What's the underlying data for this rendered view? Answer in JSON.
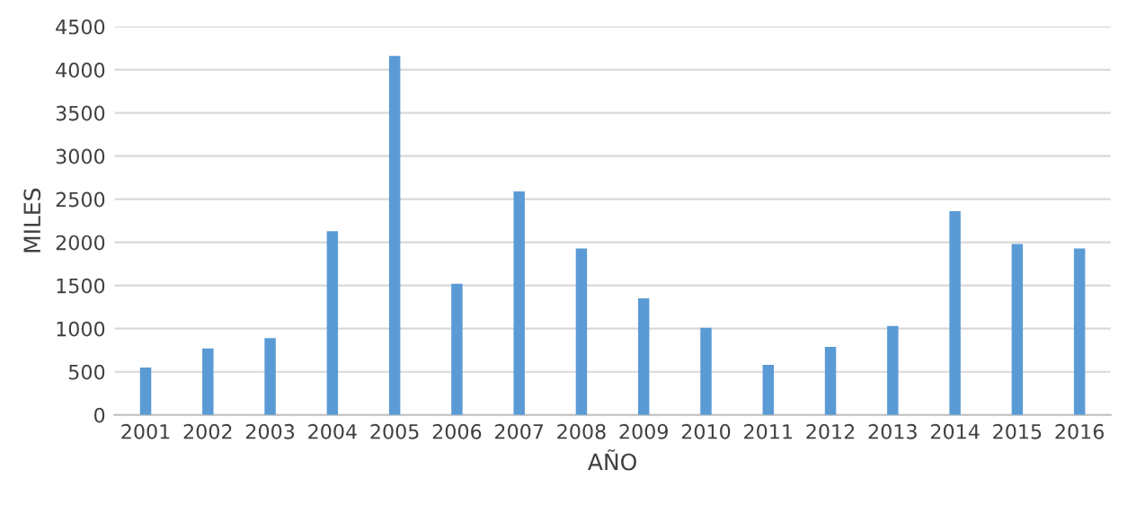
{
  "chart_data": {
    "type": "bar",
    "xlabel": "AÑO",
    "ylabel": "MILES",
    "categories": [
      "2001",
      "2002",
      "2003",
      "2004",
      "2005",
      "2006",
      "2007",
      "2008",
      "2009",
      "2010",
      "2011",
      "2012",
      "2013",
      "2014",
      "2015",
      "2016"
    ],
    "values": [
      550,
      770,
      890,
      2130,
      4160,
      1520,
      2590,
      1930,
      1350,
      1010,
      580,
      790,
      1030,
      2360,
      1980,
      1930
    ],
    "color": "#5b9bd5",
    "ylim": [
      0,
      4500
    ],
    "yticks": [
      0,
      500,
      1000,
      1500,
      2000,
      2500,
      3000,
      3500,
      4000,
      4500
    ],
    "grid": "y"
  }
}
